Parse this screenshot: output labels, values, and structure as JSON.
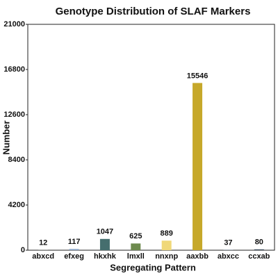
{
  "chart_data": {
    "type": "bar",
    "title": "Genotype Distribution of SLAF Markers",
    "x_label": "Segregating Pattern",
    "y_label": "Number",
    "categories": [
      "abxcd",
      "efxeg",
      "hkxhk",
      "lmxll",
      "nnxnp",
      "aaxbb",
      "abxcc",
      "ccxab"
    ],
    "values": [
      12,
      117,
      1047,
      625,
      889,
      15546,
      37,
      80
    ],
    "colors": [
      "#8a9a8a",
      "#8fa9c9",
      "#456e6e",
      "#6e8b4e",
      "#f0d879",
      "#c6a82a",
      "#5a6a7a",
      "#3a4a5a"
    ],
    "ylim": [
      0,
      21000
    ],
    "yticks": [
      0,
      4200,
      8400,
      12600,
      16800,
      21000
    ]
  }
}
